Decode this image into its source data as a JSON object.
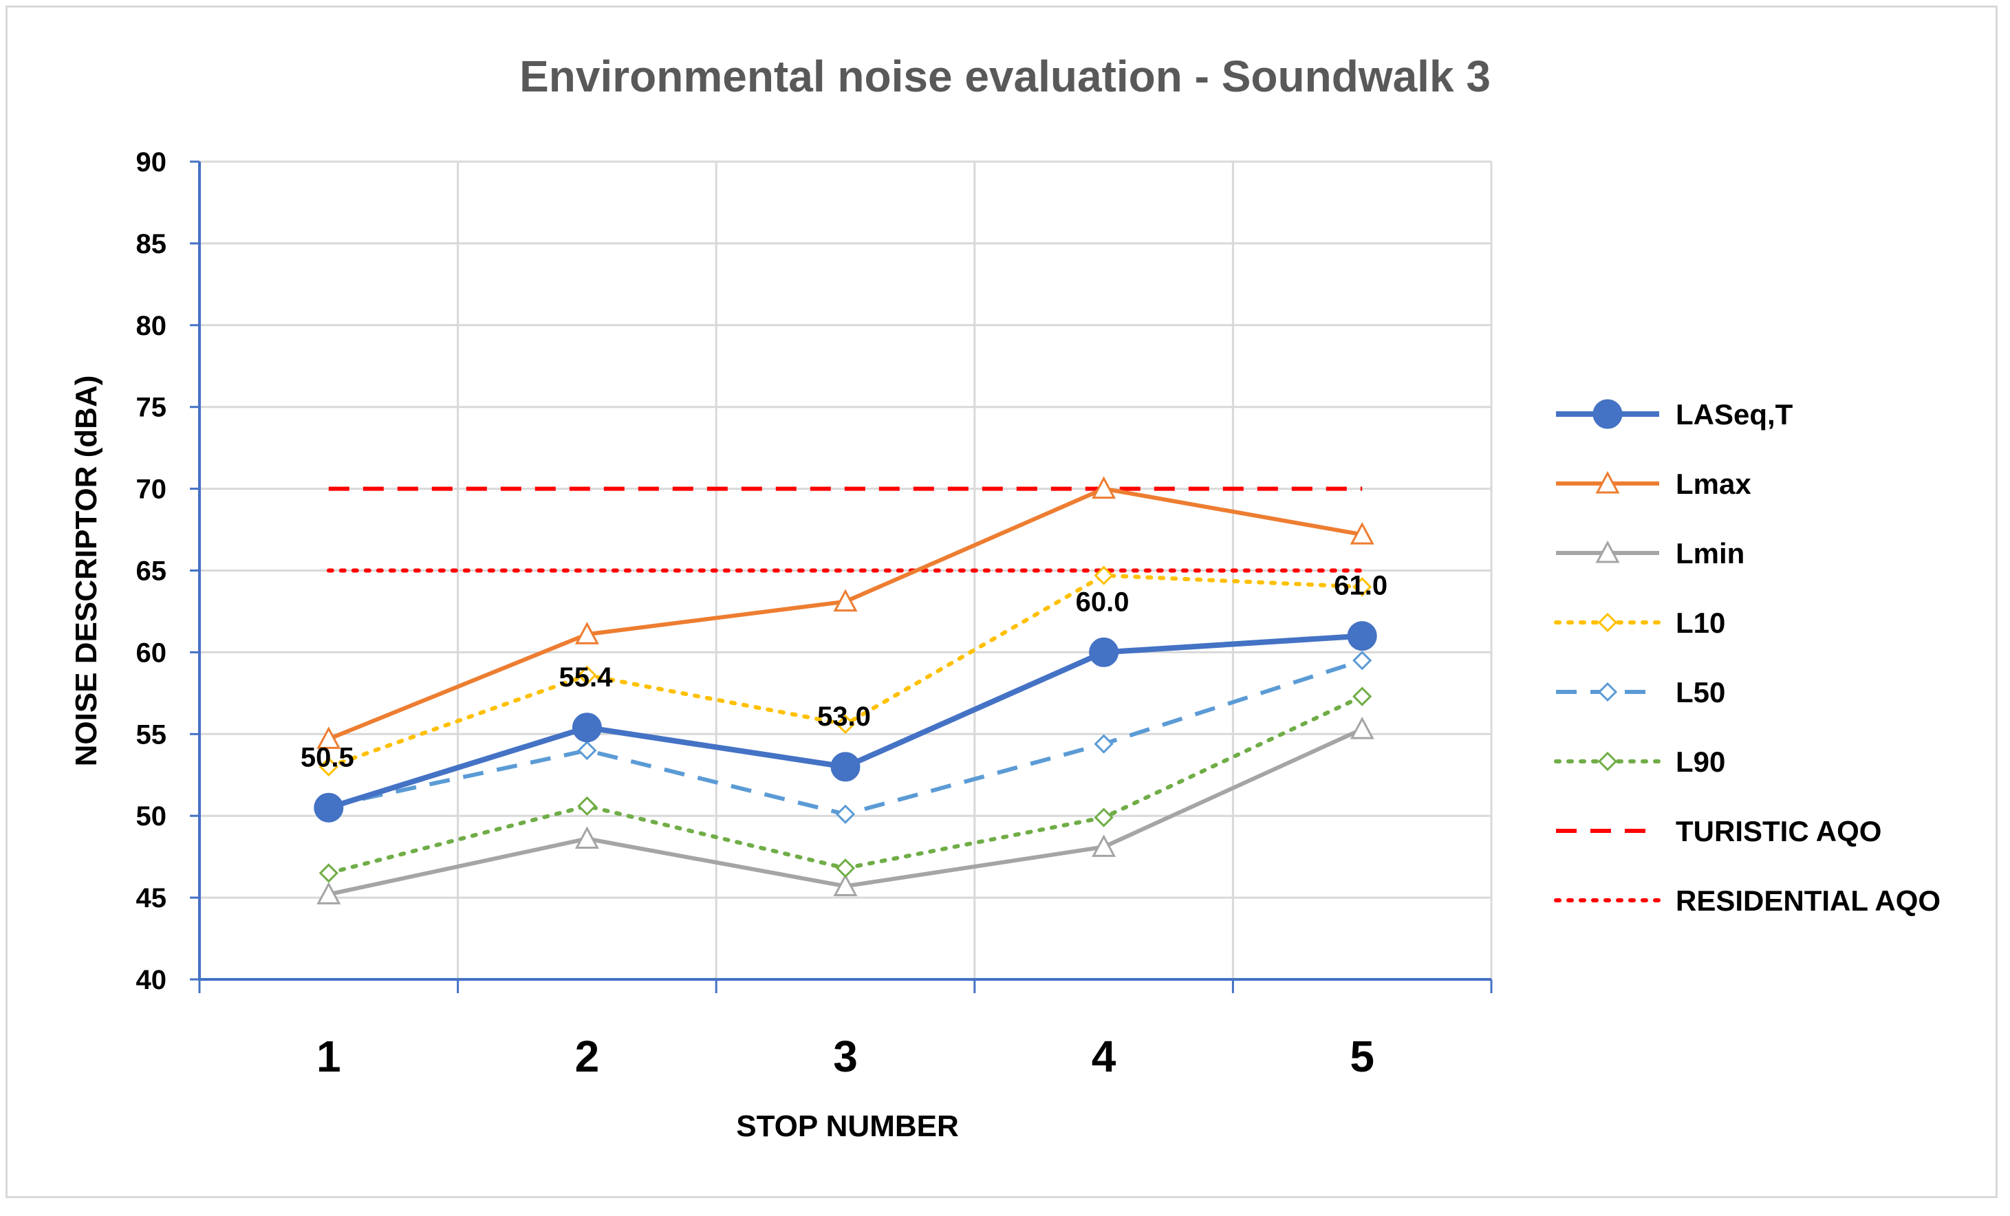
{
  "chart_data": {
    "type": "line",
    "title": "Environmental noise evaluation - Soundwalk 3",
    "xlabel": "STOP NUMBER",
    "ylabel": "NOISE DESCRIPTOR (dBA)",
    "categories": [
      "1",
      "2",
      "3",
      "4",
      "5"
    ],
    "ylim": [
      40,
      90
    ],
    "yticks": [
      40,
      45,
      50,
      55,
      60,
      65,
      70,
      75,
      80,
      85,
      90
    ],
    "grid": true,
    "legend_position": "right",
    "series": [
      {
        "name": "LASeq,T",
        "values": [
          50.5,
          55.4,
          53.0,
          60.0,
          61.0
        ],
        "color": "#4472c4",
        "dash": "solid",
        "marker": "circle-filled",
        "labels": [
          "50.5",
          "55.4",
          "53.0",
          "60.0",
          "61.0"
        ]
      },
      {
        "name": "Lmax",
        "values": [
          54.7,
          61.1,
          63.1,
          70.0,
          67.2
        ],
        "color": "#ed7d31",
        "dash": "solid",
        "marker": "triangle-open"
      },
      {
        "name": "Lmin",
        "values": [
          45.2,
          48.6,
          45.7,
          48.1,
          55.3
        ],
        "color": "#a5a5a5",
        "dash": "solid",
        "marker": "triangle-open"
      },
      {
        "name": "L10",
        "values": [
          53.0,
          58.6,
          55.6,
          64.7,
          64.0
        ],
        "color": "#ffc000",
        "dash": "dot",
        "marker": "diamond-open"
      },
      {
        "name": "L50",
        "values": [
          50.6,
          54.0,
          50.1,
          54.4,
          59.5
        ],
        "color": "#5b9bd5",
        "dash": "dash",
        "marker": "diamond-open"
      },
      {
        "name": "L90",
        "values": [
          46.5,
          50.6,
          46.8,
          49.9,
          57.3
        ],
        "color": "#70ad47",
        "dash": "dot",
        "marker": "diamond-open"
      },
      {
        "name": "TURISTIC AQO",
        "values": [
          70,
          70,
          70,
          70,
          70
        ],
        "color": "#ff0000",
        "dash": "dash",
        "marker": "none"
      },
      {
        "name": "RESIDENTIAL AQO",
        "values": [
          65,
          65,
          65,
          65,
          65
        ],
        "color": "#ff0000",
        "dash": "dot",
        "marker": "none"
      }
    ]
  }
}
